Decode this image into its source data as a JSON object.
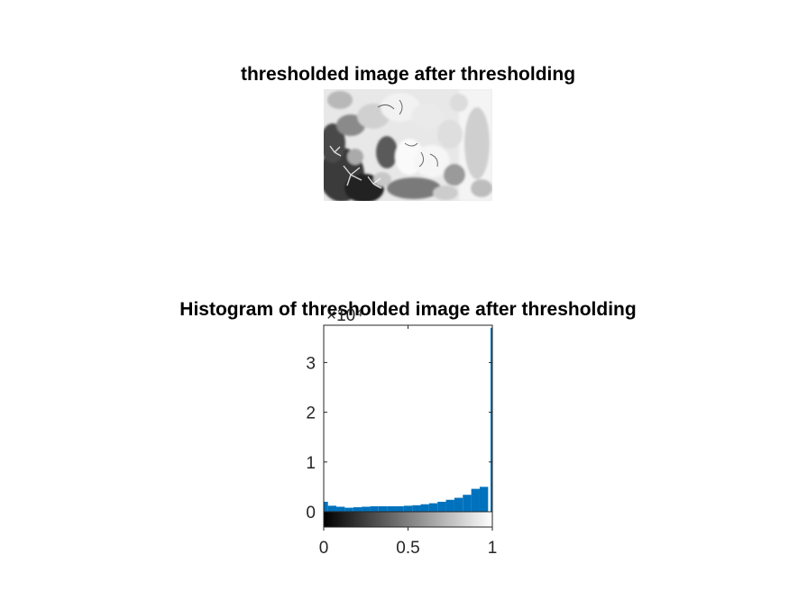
{
  "figure": {
    "top_title": "thresholded image after thresholding",
    "hist_title": "Histogram of thresholded image after thresholding"
  },
  "image_panel": {
    "content": "grayscale thresholded flower bouquet photo"
  },
  "chart_data": {
    "type": "bar",
    "title": "Histogram of thresholded image after thresholding",
    "xlabel": "",
    "ylabel": "",
    "exponent_label": "×10⁴",
    "x_ticks": [
      0,
      0.5,
      1
    ],
    "x_tick_labels": [
      "0",
      "0.5",
      "1"
    ],
    "y_ticks": [
      0,
      1,
      2,
      3
    ],
    "y_tick_labels": [
      "0",
      "1",
      "2",
      "3"
    ],
    "xlim": [
      0,
      1
    ],
    "ylim": [
      0,
      3.75
    ],
    "y_scale": 10000,
    "bar_color": "#0072BD",
    "colorbar": "gray",
    "grid": false,
    "series": [
      {
        "bins_x": [
          0.0,
          0.05,
          0.1,
          0.15,
          0.2,
          0.25,
          0.3,
          0.35,
          0.4,
          0.45,
          0.5,
          0.55,
          0.6,
          0.65,
          0.7,
          0.75,
          0.8,
          0.85,
          0.9,
          0.95,
          1.0
        ],
        "counts": [
          2000,
          1200,
          1000,
          800,
          900,
          1000,
          1100,
          1100,
          1100,
          1100,
          1200,
          1300,
          1500,
          1700,
          2000,
          2400,
          2800,
          3400,
          4600,
          5000,
          37000
        ]
      }
    ]
  }
}
